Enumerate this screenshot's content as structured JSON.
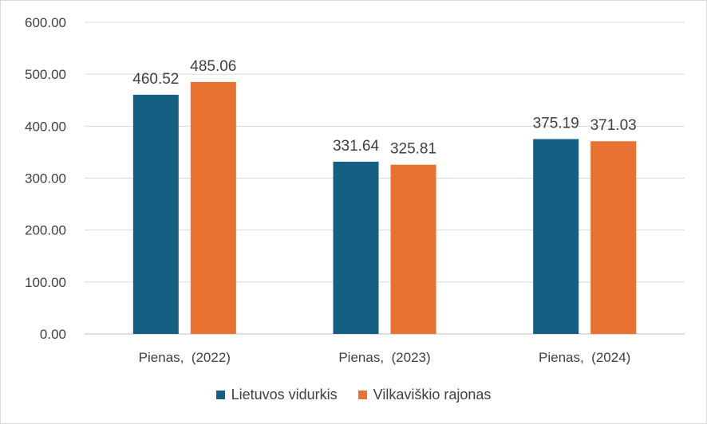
{
  "chart_data": {
    "type": "bar",
    "categories": [
      "Pienas,  (2022)",
      "Pienas,  (2023)",
      "Pienas,  (2024)"
    ],
    "series": [
      {
        "name": "Lietuvos vidurkis",
        "values": [
          460.52,
          331.64,
          375.19
        ],
        "color": "#156082",
        "labels": [
          "460.52",
          "331.64",
          "375.19"
        ]
      },
      {
        "name": "Vilkaviškio rajonas",
        "values": [
          485.06,
          325.81,
          371.03
        ],
        "color": "#E97132",
        "labels": [
          "485.06",
          "325.81",
          "371.03"
        ]
      }
    ],
    "ylim": [
      0,
      600
    ],
    "yticks": [
      "0.00",
      "100.00",
      "200.00",
      "300.00",
      "400.00",
      "500.00",
      "600.00"
    ],
    "grid": true,
    "legend_position": "bottom"
  }
}
